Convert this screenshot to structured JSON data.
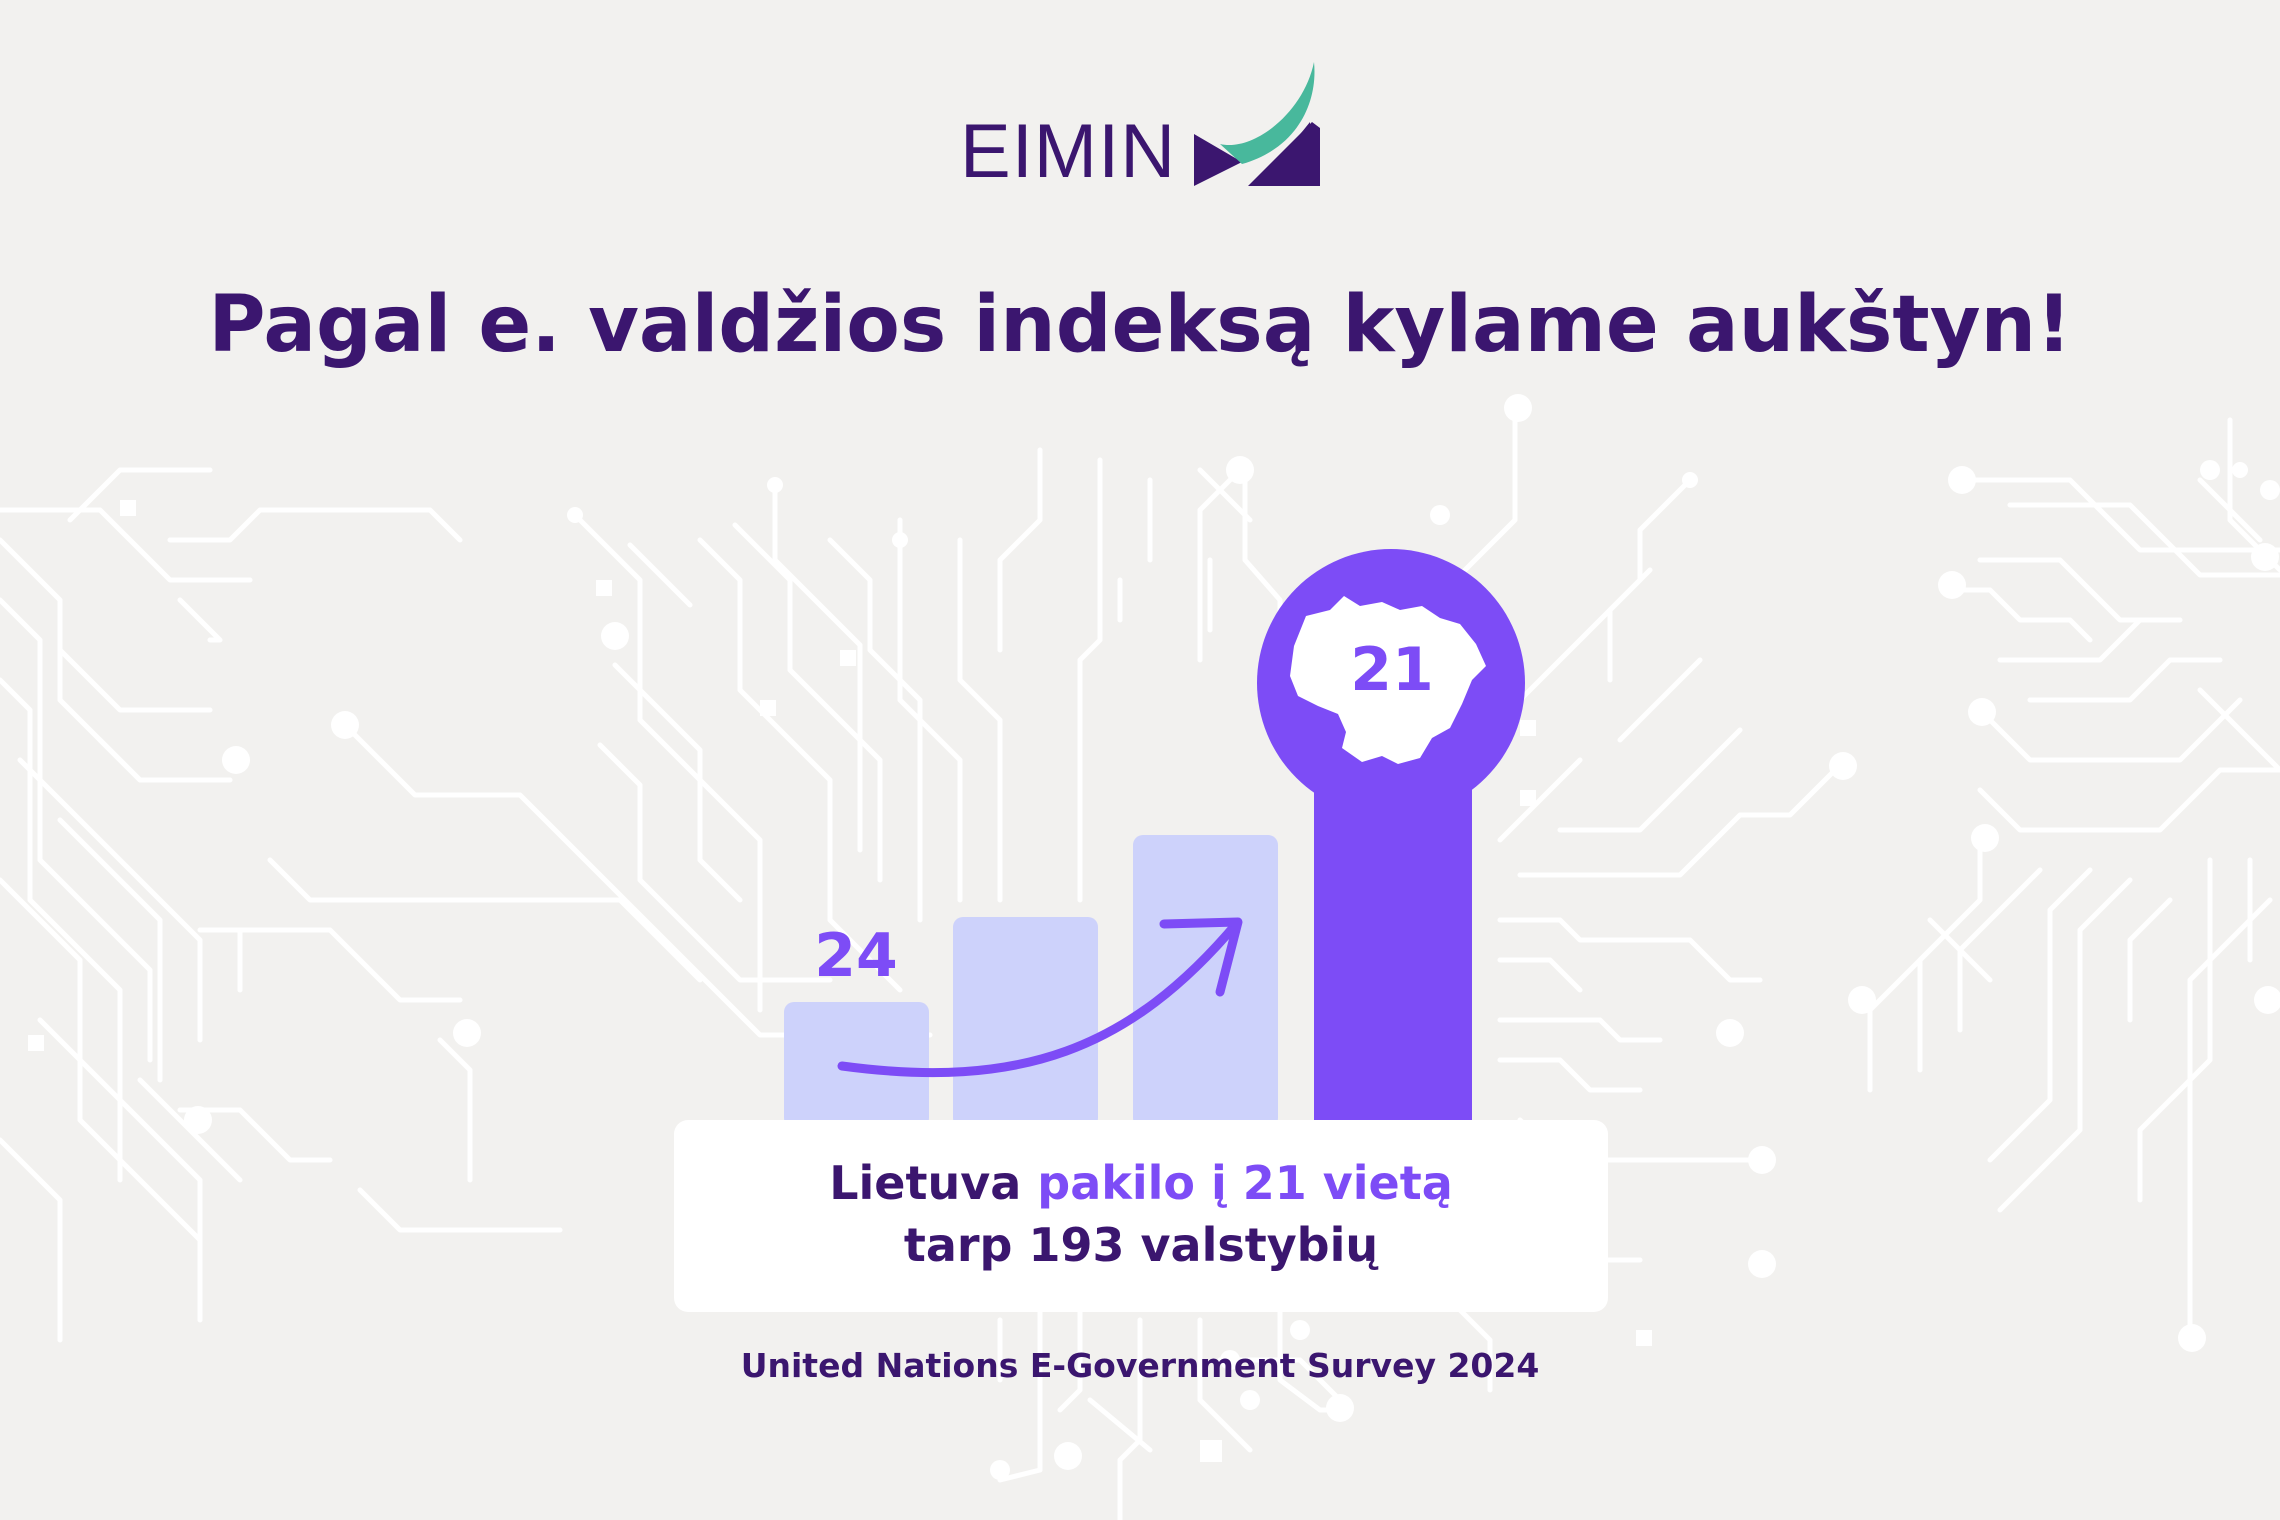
{
  "logo": {
    "text": "EIMIN",
    "colors": {
      "dark": "#3b166f",
      "teal": "#48b89c"
    }
  },
  "headline": "Pagal e. valdžios indeksą kylame aukštyn!",
  "chart_data": {
    "type": "bar",
    "values": [
      24,
      null,
      null,
      21
    ],
    "labels_shown": [
      "24",
      "21"
    ],
    "highlighted_bar_index": 3,
    "colors": {
      "bars": "#cdd2fb",
      "highlight": "#7d4cf6",
      "arrow": "#7d4cf6",
      "label_24": "#7d4cf6",
      "label_21": "#7d4cf6"
    }
  },
  "card": {
    "line1_prefix": "Lietuva ",
    "line1_accent": "pakilo į 21 vietą",
    "line2": "tarp 193 valstybių"
  },
  "source": "United Nations E-Government Survey 2024",
  "icons": {
    "circuit_background": "circuit-board-pattern",
    "trend_arrow": "curved-up-arrow-icon",
    "country_map": "lithuania-map-icon"
  },
  "colors": {
    "background": "#f2f1ef",
    "circuit": "#ffffff",
    "text": "#3b166f",
    "accent": "#7d4cf6"
  }
}
